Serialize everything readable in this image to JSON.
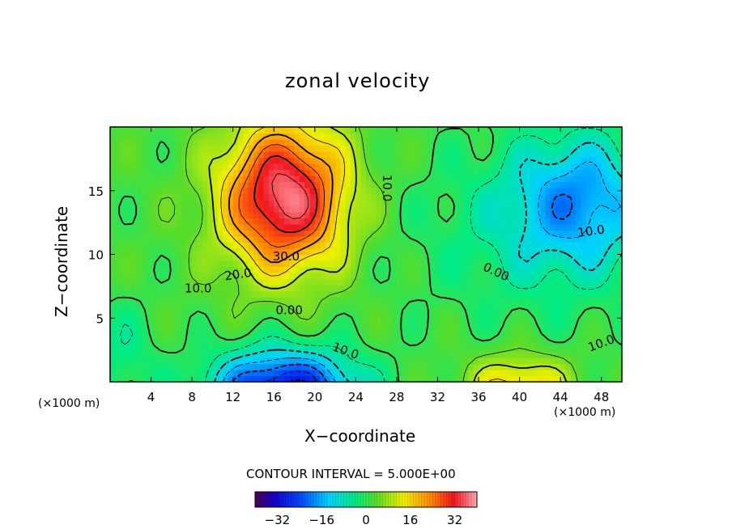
{
  "chart_data": {
    "type": "heatmap",
    "title": "zonal velocity",
    "xlabel": "X−coordinate",
    "ylabel": "Z−coordinate",
    "x_unit": "(×1000 m)",
    "xlim": [
      0,
      50
    ],
    "ylim": [
      0,
      20
    ],
    "xticks": [
      4,
      8,
      12,
      16,
      20,
      24,
      28,
      32,
      36,
      40,
      44,
      48
    ],
    "yticks": [
      5,
      10,
      15
    ],
    "contour_interval_label": "CONTOUR INTERVAL = 5.000E+00",
    "contour_interval": 5,
    "colorbar": {
      "range": [
        -40,
        40
      ],
      "ticks": [
        -32,
        -16,
        0,
        16,
        32
      ],
      "tick_labels": [
        "−32",
        "−16",
        "0",
        "16",
        "32"
      ]
    },
    "contour_labels": [
      {
        "text": "30.0",
        "x": 17.2,
        "z": 9.8,
        "angle": 0
      },
      {
        "text": "20.0",
        "x": 12.5,
        "z": 8.4,
        "angle": -8
      },
      {
        "text": "10.0",
        "x": 8.6,
        "z": 7.3,
        "angle": 0
      },
      {
        "text": "0.00",
        "x": 17.5,
        "z": 5.6,
        "angle": 0
      },
      {
        "text": "10.0",
        "x": 23.0,
        "z": 2.4,
        "angle": 20
      },
      {
        "text": "10.0",
        "x": 27.0,
        "z": 15.2,
        "angle": 90
      },
      {
        "text": "0.00",
        "x": 37.7,
        "z": 8.6,
        "angle": 25
      },
      {
        "text": "10.0",
        "x": 47.0,
        "z": 11.8,
        "angle": -8
      },
      {
        "text": "10.0",
        "x": 48.0,
        "z": 3.0,
        "angle": -20
      }
    ],
    "field_centers": [
      {
        "x": 17,
        "z": 13.5,
        "value": 38
      },
      {
        "x": 17,
        "z": -0.5,
        "value": -34
      },
      {
        "x": 47,
        "z": 14.5,
        "value": -13
      },
      {
        "x": 40,
        "z": -0.5,
        "value": 18
      }
    ]
  }
}
